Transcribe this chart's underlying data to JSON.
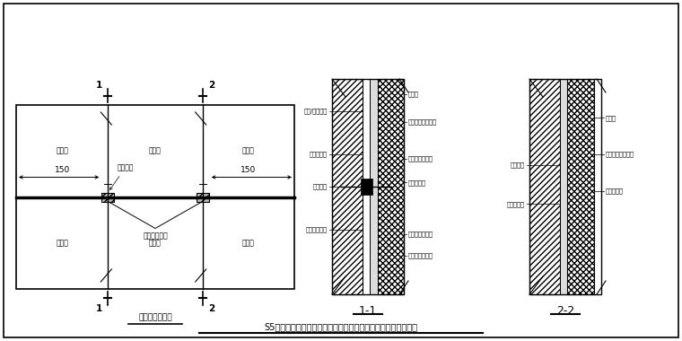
{
  "title": "S5工程精装修大堂墙面湿贴工艺硬化砖湿贴局部加强做法示意图",
  "subtitle_plan": "墙砖立面示意图",
  "section1_label": "1-1",
  "section2_label": "2-2",
  "tile_label": "硬化砖",
  "dim1": "150",
  "dim2": "150",
  "anchor1": "射钉固定",
  "anchor2": "不锈钢湿挂件",
  "sec1_left_labels": [
    [
      0.85,
      "结构/墙体基层"
    ],
    [
      0.65,
      "墙体找支层"
    ],
    [
      0.5,
      "射钉固定"
    ],
    [
      0.3,
      "不锈钢湿挂件"
    ]
  ],
  "sec1_right_labels": [
    [
      0.93,
      "硬化砖"
    ],
    [
      0.8,
      "硬化砖强力粘结剂"
    ],
    [
      0.63,
      "云石胶快速固定"
    ],
    [
      0.52,
      "填缝泡棉缝"
    ],
    [
      0.28,
      "硬化砖背面开槽"
    ],
    [
      0.18,
      "采用云石胶固定"
    ]
  ],
  "sec2_left_labels": [
    [
      0.6,
      "墙体基层"
    ],
    [
      0.42,
      "墙体找支层"
    ]
  ],
  "sec2_right_labels": [
    [
      0.82,
      "硬化砖"
    ],
    [
      0.65,
      "硬化砖强力粘结剂"
    ],
    [
      0.48,
      "填缝泡棉缝"
    ]
  ]
}
